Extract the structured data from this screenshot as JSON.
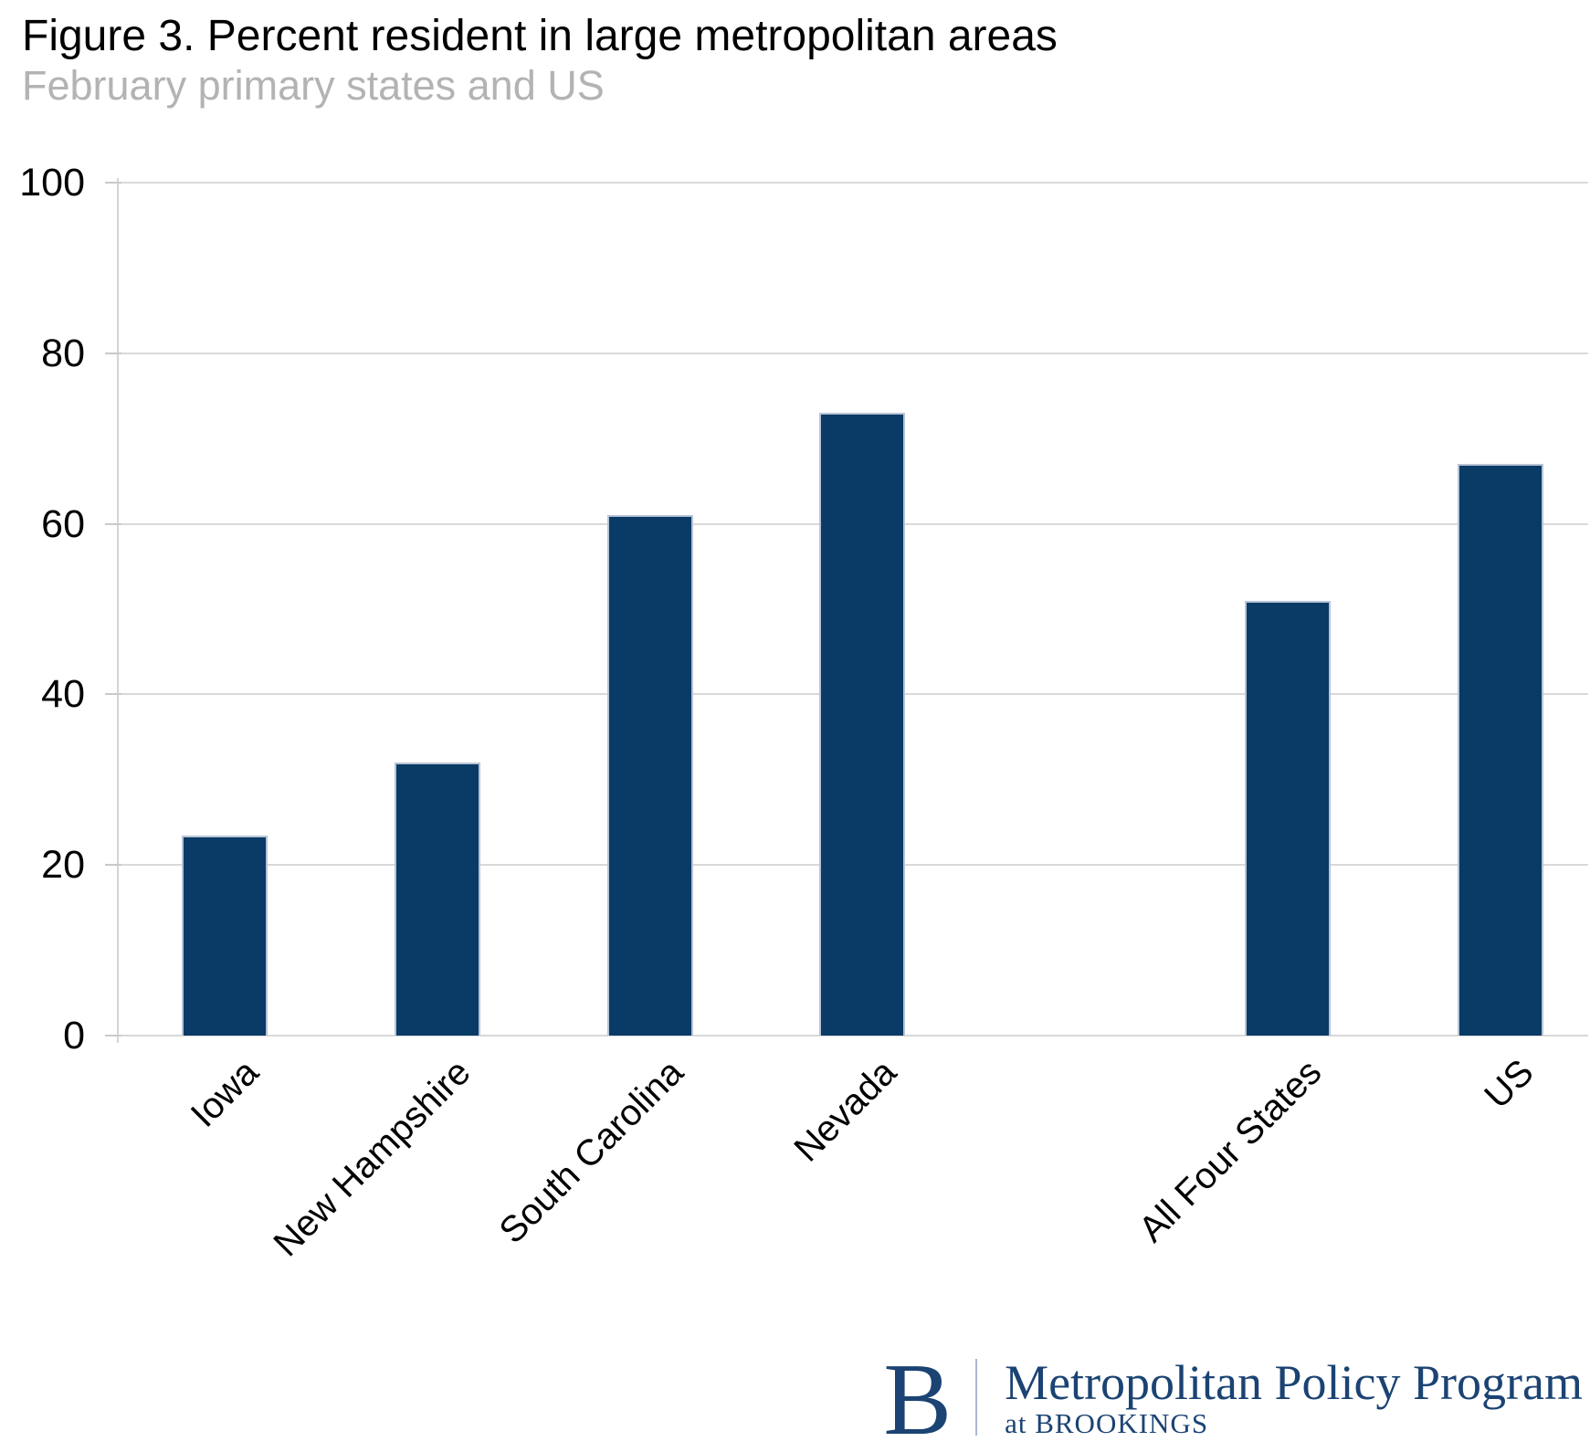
{
  "chart_data": {
    "type": "bar",
    "title": "Figure 3. Percent resident in large metropolitan areas",
    "subtitle": "February primary states and US",
    "categories": [
      "Iowa",
      "New Hampshire",
      "South Carolina",
      "Nevada",
      "All Four States",
      "US"
    ],
    "values": [
      23.5,
      32,
      61,
      73,
      51,
      67
    ],
    "xlabel": "",
    "ylabel": "",
    "ylim": [
      0,
      100
    ],
    "yticks": [
      0,
      20,
      40,
      60,
      80,
      100
    ],
    "grid": "horizontal",
    "legend": "none",
    "slot_indices": [
      0,
      1,
      2,
      3,
      5,
      6
    ],
    "bar_color": "#0a3a66",
    "bar_border_color": "#b7c4d5",
    "gridline_color": "#d9d9d9"
  },
  "logo": {
    "monogram": "B",
    "program": "Metropolitan Policy Program",
    "tagline": "at BROOKINGS",
    "color": "#1b4373"
  }
}
